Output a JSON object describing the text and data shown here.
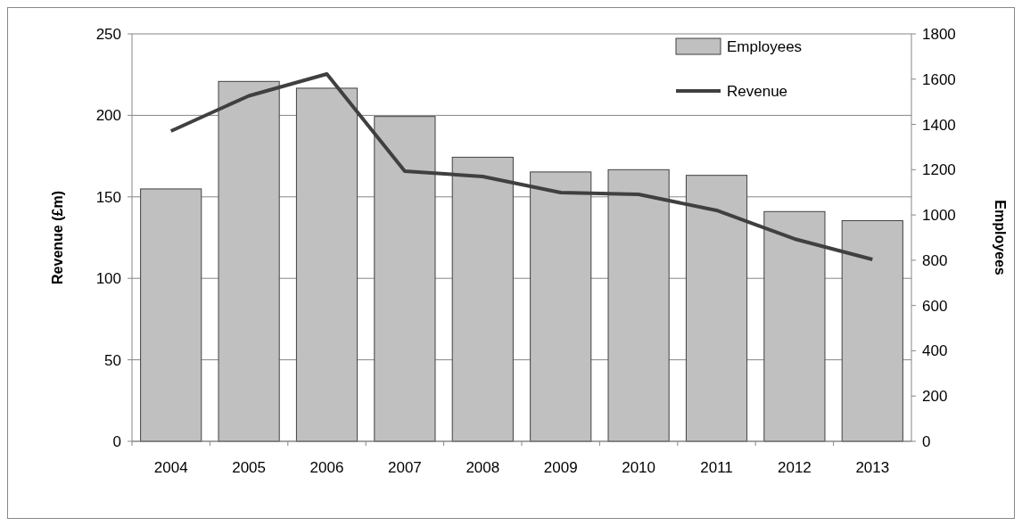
{
  "chart_data": {
    "type": "bar",
    "categories": [
      "2004",
      "2005",
      "2006",
      "2007",
      "2008",
      "2009",
      "2010",
      "2011",
      "2012",
      "2013"
    ],
    "series": [
      {
        "name": "Employees",
        "axis": "y2",
        "color": "#c0c0c0",
        "values": [
          1115,
          1590,
          1560,
          1435,
          1255,
          1190,
          1200,
          1175,
          1015,
          975
        ]
      },
      {
        "name": "Revenue",
        "type": "line",
        "color": "#404040",
        "values": [
          190.4,
          212,
          225.4,
          165.8,
          162.5,
          152.6,
          151.5,
          141.7,
          124.2,
          111.6
        ]
      }
    ],
    "ylabel": "Revenue (£m)",
    "y2label": "Employees",
    "ylim": [
      0,
      250
    ],
    "yticks": [
      0,
      50,
      100,
      150,
      200,
      250
    ],
    "y2lim": [
      0,
      1800
    ],
    "y2ticks": [
      0,
      200,
      400,
      600,
      800,
      1000,
      1200,
      1400,
      1600,
      1800
    ],
    "grid": "y",
    "legend": "top right",
    "marker": "none",
    "line_style": "solid"
  }
}
